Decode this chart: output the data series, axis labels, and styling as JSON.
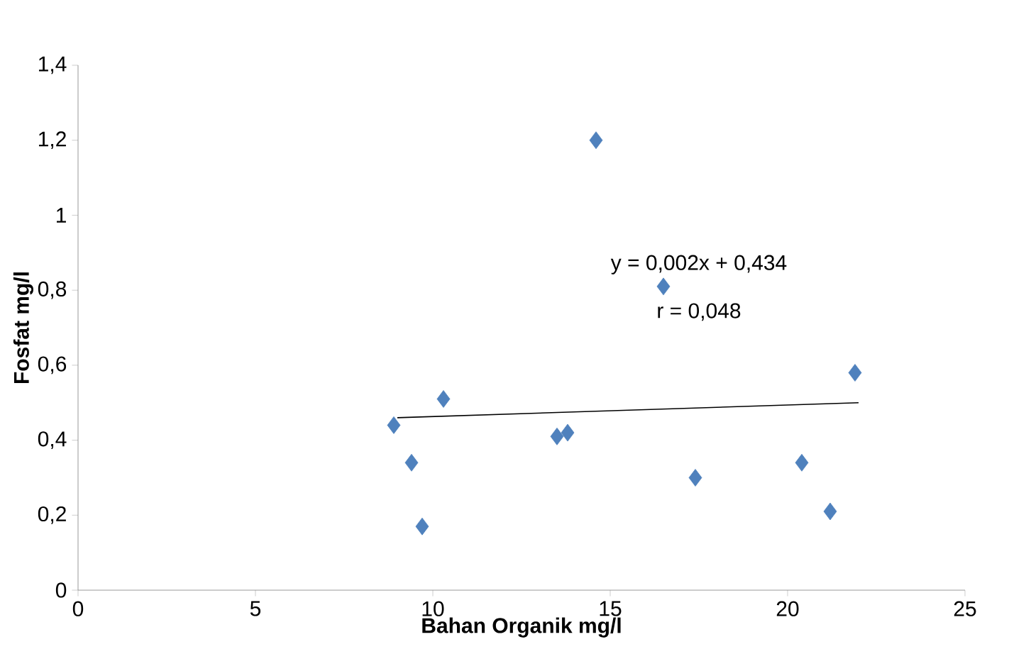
{
  "chart_data": {
    "type": "scatter",
    "xlabel": "Bahan Organik mg/l",
    "ylabel": "Fosfat mg/l",
    "marker": "diamond",
    "grid": false,
    "xlim": [
      0,
      25
    ],
    "xticks": [
      0,
      5,
      10,
      15,
      20,
      25
    ],
    "ylim": [
      0,
      1.4
    ],
    "yticks": [
      0,
      {
        "value": 0.2,
        "label": "0,2"
      },
      {
        "value": 0.4,
        "label": "0,4"
      },
      {
        "value": 0.6,
        "label": "0,6"
      },
      {
        "value": 0.8,
        "label": "0,8"
      },
      1,
      {
        "value": 1.2,
        "label": "1,2"
      },
      {
        "value": 1.4,
        "label": "1,4"
      }
    ],
    "annotations": [
      "y = 0,002x + 0,434",
      "r = 0,048"
    ],
    "series": [
      {
        "color": "#4f81bd",
        "x": [
          8.9,
          9.4,
          9.7,
          10.3,
          13.5,
          13.8,
          14.6,
          16.5,
          17.4,
          20.4,
          21.2,
          21.9
        ],
        "values": [
          0.44,
          0.34,
          0.17,
          0.51,
          0.41,
          0.42,
          1.2,
          0.81,
          0.3,
          0.34,
          0.21,
          0.58
        ]
      },
      {
        "type": "line",
        "color": "#000000",
        "marker": "none",
        "x": [
          9,
          22
        ],
        "values": [
          0.46,
          0.5
        ]
      }
    ]
  }
}
